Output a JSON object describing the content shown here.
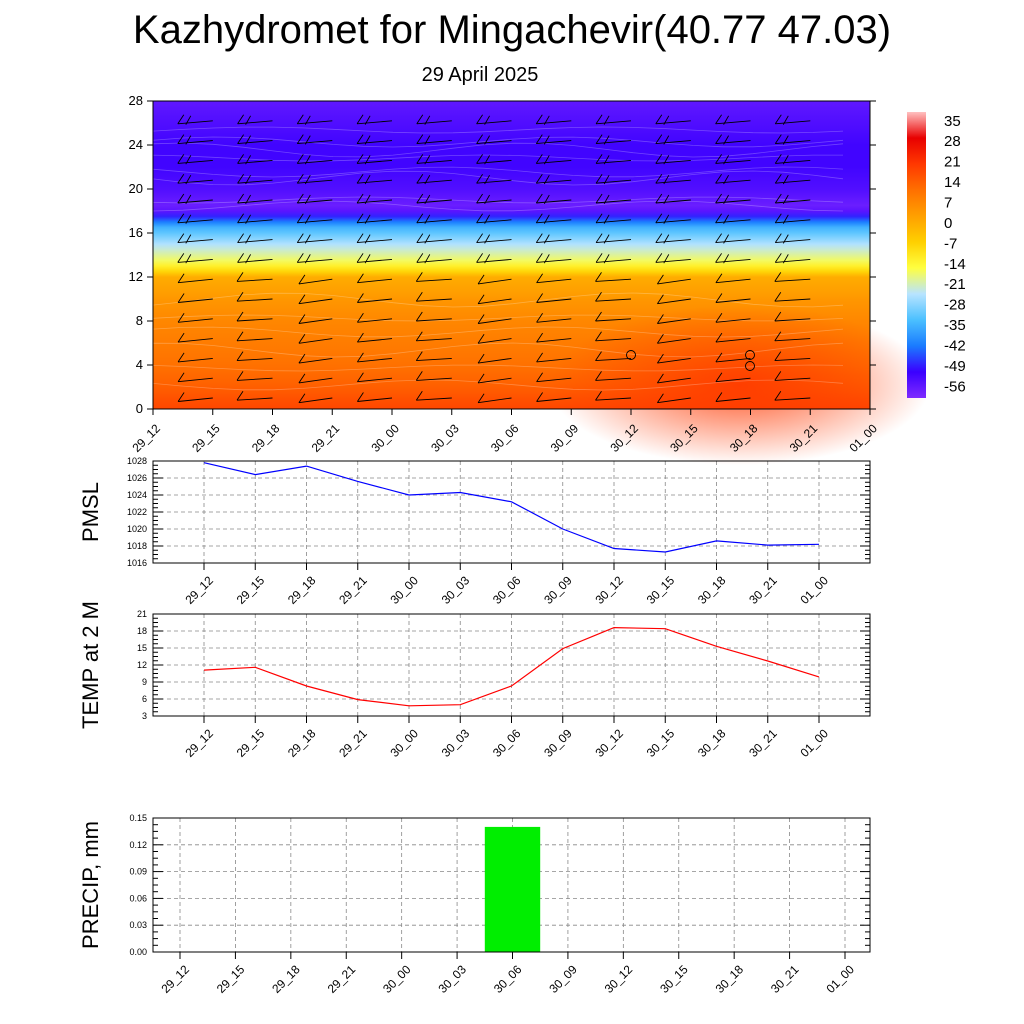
{
  "title": "Kazhydromet for Mingachevir(40.77 47.03)",
  "subtitle": "29 April 2025",
  "colors": {
    "pmsl_line": "#0000ff",
    "temp_line": "#ff0000",
    "precip_bar": "#00ee00"
  },
  "chart_data": [
    {
      "type": "heatmap",
      "name": "temperature-height section",
      "x_ticks": [
        "29_12",
        "29_15",
        "29_18",
        "29_21",
        "30_00",
        "30_03",
        "30_06",
        "30_09",
        "30_12",
        "30_15",
        "30_18",
        "30_21",
        "01_00"
      ],
      "y_ticks": [
        "0",
        "4",
        "8",
        "12",
        "16",
        "20",
        "24",
        "28"
      ],
      "ylim": [
        0,
        28
      ],
      "colorbar_labels": [
        "35",
        "28",
        "21",
        "14",
        "7",
        "0",
        "-7",
        "-14",
        "-21",
        "-28",
        "-35",
        "-42",
        "-49",
        "-56"
      ],
      "colorbar_range": [
        -60,
        38
      ],
      "colorbar_colors": [
        "#7f2bff",
        "#3a00ff",
        "#1a7bff",
        "#4bc0ff",
        "#b8e4ff",
        "#ffff40",
        "#ffd000",
        "#ffa000",
        "#ff7000",
        "#ff3800",
        "#e80000",
        "#ffc0c0"
      ],
      "profile_levels": [
        0,
        2,
        4,
        6,
        8,
        10,
        12,
        12.6,
        13.5,
        15,
        16.5,
        18.2,
        20,
        22,
        24,
        26,
        28
      ],
      "profile_values": [
        18,
        14,
        11,
        9,
        7,
        4,
        0,
        -9,
        -17,
        -25,
        -35,
        -58,
        -54,
        -52,
        -52,
        -54,
        -56
      ],
      "grid": false
    },
    {
      "type": "line",
      "ylabel": "PMSL",
      "x": [
        "29_12",
        "29_15",
        "29_18",
        "29_21",
        "30_00",
        "30_03",
        "30_06",
        "30_09",
        "30_12",
        "30_15",
        "30_18",
        "30_21",
        "01_00"
      ],
      "y_ticks": [
        "1016",
        "1018",
        "1020",
        "1022",
        "1024",
        "1026",
        "1028"
      ],
      "ylim": [
        1016,
        1028
      ],
      "values": [
        1027.8,
        1026.4,
        1027.4,
        1025.6,
        1024.0,
        1024.3,
        1023.2,
        1020.0,
        1017.7,
        1017.3,
        1018.6,
        1018.1,
        1018.2
      ],
      "grid": true
    },
    {
      "type": "line",
      "ylabel": "TEMP at 2 M",
      "x": [
        "29_12",
        "29_15",
        "29_18",
        "29_21",
        "30_00",
        "30_03",
        "30_06",
        "30_09",
        "30_12",
        "30_15",
        "30_18",
        "30_21",
        "01_00"
      ],
      "y_ticks": [
        "3",
        "6",
        "9",
        "12",
        "15",
        "18",
        "21"
      ],
      "ylim": [
        3,
        21
      ],
      "values": [
        11.1,
        11.6,
        8.3,
        5.9,
        4.8,
        5.0,
        8.3,
        14.9,
        18.6,
        18.4,
        15.3,
        12.7,
        9.9
      ],
      "grid": true
    },
    {
      "type": "bar",
      "ylabel": "PRECIP, mm",
      "x": [
        "29_12",
        "29_15",
        "29_18",
        "29_21",
        "30_00",
        "30_03",
        "30_06",
        "30_09",
        "30_12",
        "30_15",
        "30_18",
        "30_21",
        "01_00"
      ],
      "y_ticks": [
        "0.00",
        "0.03",
        "0.06",
        "0.09",
        "0.12",
        "0.15"
      ],
      "ylim": [
        0,
        0.15
      ],
      "values": [
        0,
        0,
        0,
        0,
        0,
        0,
        0.14,
        0,
        0,
        0,
        0,
        0,
        0
      ],
      "grid": true
    }
  ]
}
